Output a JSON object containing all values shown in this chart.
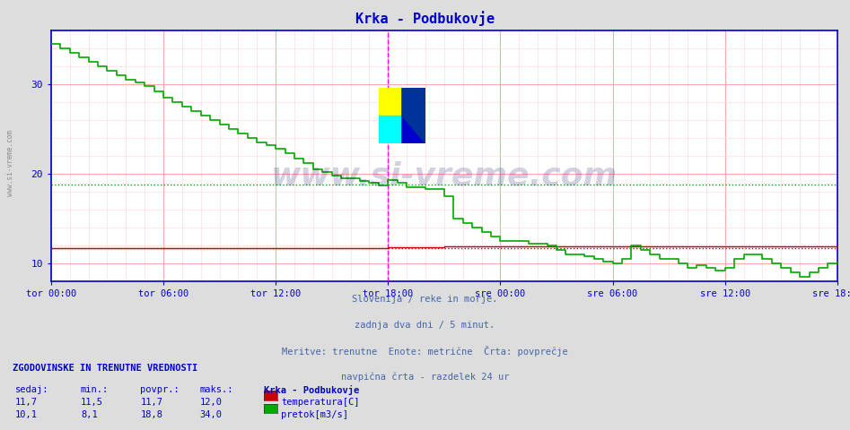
{
  "title": "Krka - Podbukovje",
  "title_color": "#0000cc",
  "bg_color": "#dddddd",
  "plot_bg_color": "#ffffff",
  "grid_color_major": "#ffaaaa",
  "grid_color_minor": "#ffdddd",
  "border_color": "#0000cc",
  "tick_color": "#0000cc",
  "watermark": "www.si-vreme.com",
  "watermark_color": "#000055",
  "watermark_alpha": 0.18,
  "subtitle_lines": [
    "Slovenija / reke in morje.",
    "zadnja dva dni / 5 minut.",
    "Meritve: trenutne  Enote: metrične  Črta: povprečje",
    "navpična črta - razdelek 24 ur"
  ],
  "subtitle_color": "#4466aa",
  "legend_title": "Krka - Podbukovje",
  "legend_entries": [
    "temperatura[C]",
    "pretok[m3/s]"
  ],
  "legend_colors": [
    "#cc0000",
    "#00aa00"
  ],
  "stats_header": "ZGODOVINSKE IN TRENUTNE VREDNOSTI",
  "stats_cols": [
    "sedaj:",
    "min.:",
    "povpr.:",
    "maks.:"
  ],
  "stats_rows": [
    [
      "11,7",
      "11,5",
      "11,7",
      "12,0"
    ],
    [
      "10,1",
      "8,1",
      "18,8",
      "34,0"
    ]
  ],
  "ylim": [
    8.0,
    36.0
  ],
  "yticks": [
    10,
    20,
    30
  ],
  "xtick_labels": [
    "tor 00:00",
    "tor 06:00",
    "tor 12:00",
    "tor 18:00",
    "sre 00:00",
    "sre 06:00",
    "sre 12:00",
    "sre 18:00"
  ],
  "xtick_positions": [
    0,
    6,
    12,
    18,
    24,
    30,
    36,
    42
  ],
  "vline_positions": [
    18,
    42
  ],
  "vline_color": "#ff00ff",
  "avg_temp": 11.7,
  "avg_temp_color": "#cc0000",
  "avg_flow": 18.8,
  "avg_flow_color": "#00aa00",
  "temp_color": "#cc0000",
  "flow_color": "#00aa00",
  "temp_data_x": [
    0,
    1,
    2,
    3,
    4,
    5,
    6,
    7,
    8,
    9,
    10,
    11,
    12,
    13,
    14,
    15,
    16,
    17,
    18,
    19,
    20,
    21,
    22,
    23,
    24,
    25,
    26,
    27,
    28,
    29,
    30,
    31,
    32,
    33,
    34,
    35,
    36,
    37,
    38,
    39,
    40,
    41,
    42
  ],
  "temp_data_y": [
    11.7,
    11.7,
    11.7,
    11.7,
    11.7,
    11.7,
    11.7,
    11.7,
    11.7,
    11.7,
    11.7,
    11.7,
    11.7,
    11.7,
    11.7,
    11.7,
    11.7,
    11.7,
    11.8,
    11.8,
    11.8,
    11.9,
    11.9,
    11.9,
    11.9,
    11.9,
    11.9,
    11.9,
    11.9,
    11.9,
    11.9,
    11.9,
    11.9,
    11.9,
    11.9,
    11.9,
    11.9,
    11.9,
    11.9,
    11.9,
    11.9,
    11.9,
    11.7
  ],
  "flow_data_x": [
    0,
    0.5,
    1,
    1.5,
    2,
    2.5,
    3,
    3.5,
    4,
    4.5,
    5,
    5.5,
    6,
    6.5,
    7,
    7.5,
    8,
    8.5,
    9,
    9.5,
    10,
    10.5,
    11,
    11.5,
    12,
    12.5,
    13,
    13.5,
    14,
    14.5,
    15,
    15.5,
    16,
    16.5,
    17,
    17.5,
    18,
    18.5,
    19,
    19.5,
    20,
    20.5,
    21,
    21.5,
    22,
    22.5,
    23,
    23.5,
    24,
    24.5,
    25,
    25.5,
    26,
    26.5,
    27,
    27.5,
    28,
    28.5,
    29,
    29.5,
    30,
    30.5,
    31,
    31.5,
    32,
    32.5,
    33,
    33.5,
    34,
    34.5,
    35,
    35.5,
    36,
    36.5,
    37,
    37.5,
    38,
    38.5,
    39,
    39.5,
    40,
    40.5,
    41,
    41.5,
    42
  ],
  "flow_data_y": [
    34.5,
    34.0,
    33.5,
    33.0,
    32.5,
    32.0,
    31.5,
    31.0,
    30.5,
    30.2,
    29.8,
    29.2,
    28.5,
    28.0,
    27.5,
    27.0,
    26.5,
    26.0,
    25.5,
    25.0,
    24.5,
    24.0,
    23.5,
    23.2,
    22.8,
    22.3,
    21.7,
    21.2,
    20.5,
    20.2,
    19.8,
    19.5,
    19.5,
    19.2,
    19.0,
    18.7,
    19.3,
    19.0,
    18.5,
    18.5,
    18.3,
    18.3,
    17.5,
    15.0,
    14.5,
    14.0,
    13.5,
    13.0,
    12.5,
    12.5,
    12.5,
    12.2,
    12.2,
    12.0,
    11.5,
    11.0,
    11.0,
    10.8,
    10.5,
    10.2,
    10.0,
    10.5,
    12.0,
    11.5,
    11.0,
    10.5,
    10.5,
    10.0,
    9.5,
    9.8,
    9.5,
    9.2,
    9.5,
    10.5,
    11.0,
    11.0,
    10.5,
    10.0,
    9.5,
    9.0,
    8.5,
    9.0,
    9.5,
    10.0,
    10.1
  ]
}
